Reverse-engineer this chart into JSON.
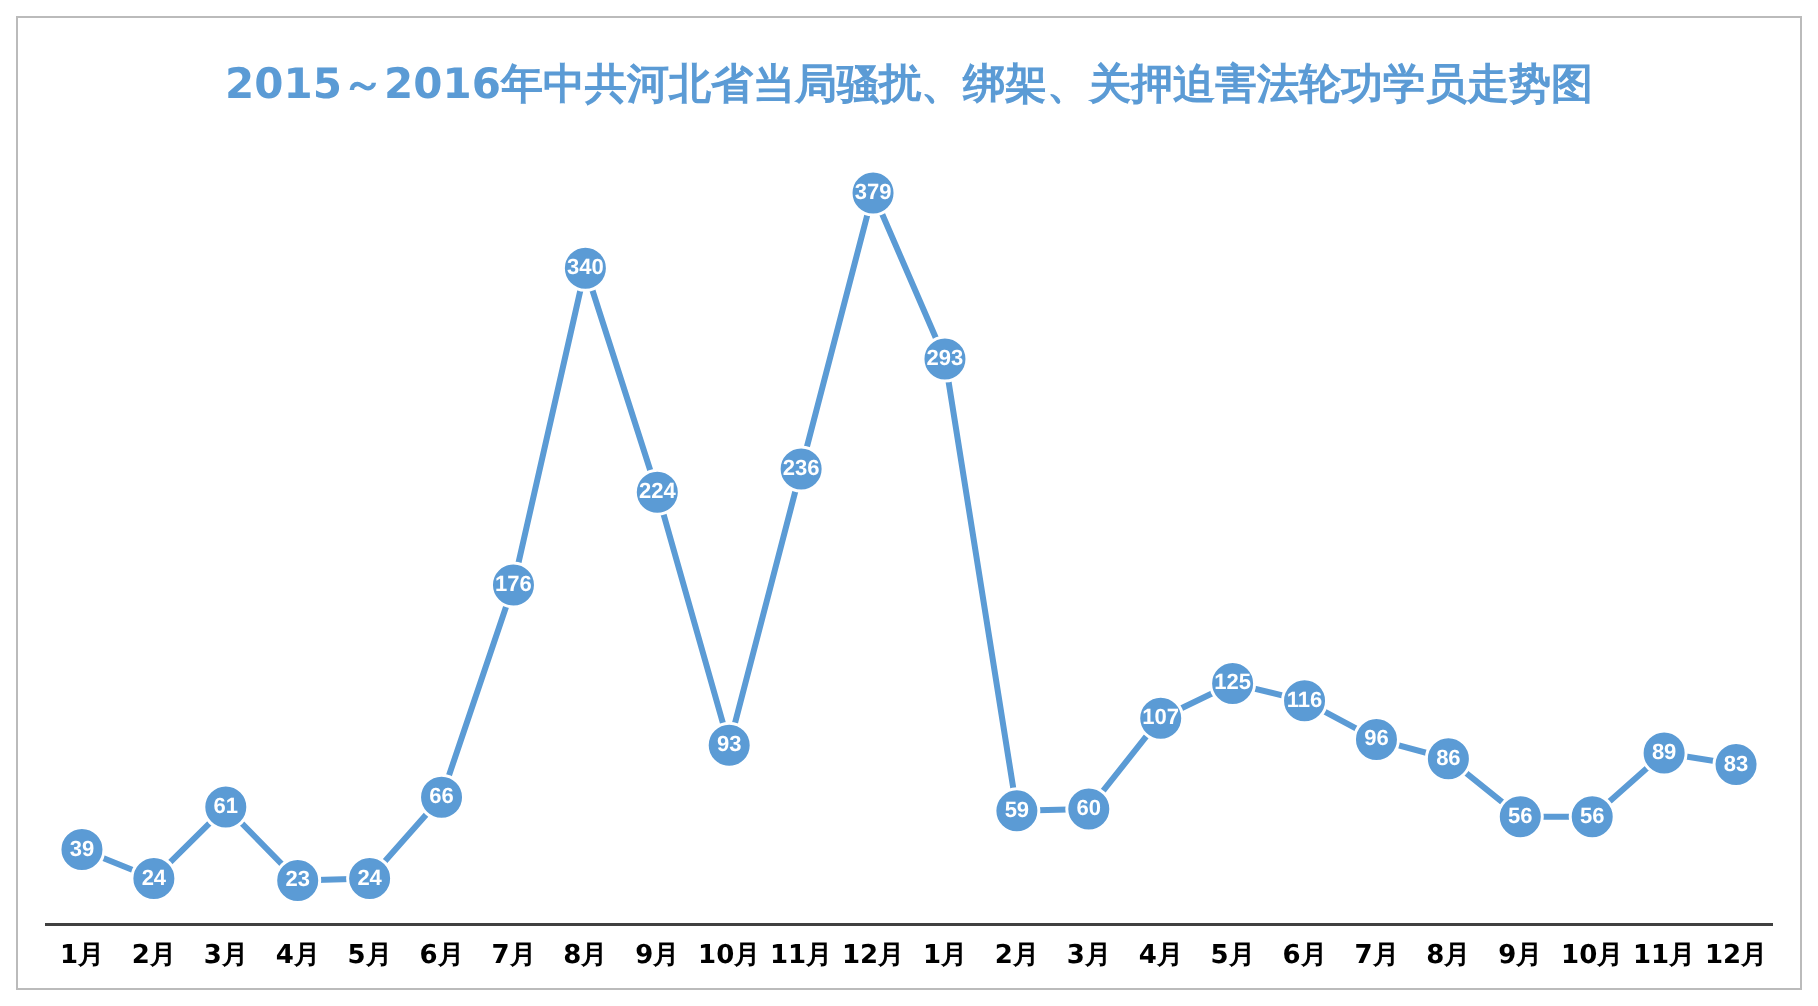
{
  "chart_data": {
    "type": "line",
    "title": "2015～2016年中共河北省当局骚扰、绑架、关押迫害法轮功学员走势图",
    "categories": [
      "1月",
      "2月",
      "3月",
      "4月",
      "5月",
      "6月",
      "7月",
      "8月",
      "9月",
      "10月",
      "11月",
      "12月",
      "1月",
      "2月",
      "3月",
      "4月",
      "5月",
      "6月",
      "7月",
      "8月",
      "9月",
      "10月",
      "11月",
      "12月"
    ],
    "series": [
      {
        "color": "#5b9bd5",
        "values": [
          39,
          24,
          61,
          23,
          24,
          66,
          176,
          340,
          224,
          93,
          236,
          379,
          293,
          59,
          60,
          107,
          125,
          116,
          96,
          86,
          56,
          56,
          89,
          83
        ]
      }
    ],
    "data_labels": true,
    "marker": "circle",
    "line_style": "solid",
    "grid": false,
    "legend": false
  }
}
